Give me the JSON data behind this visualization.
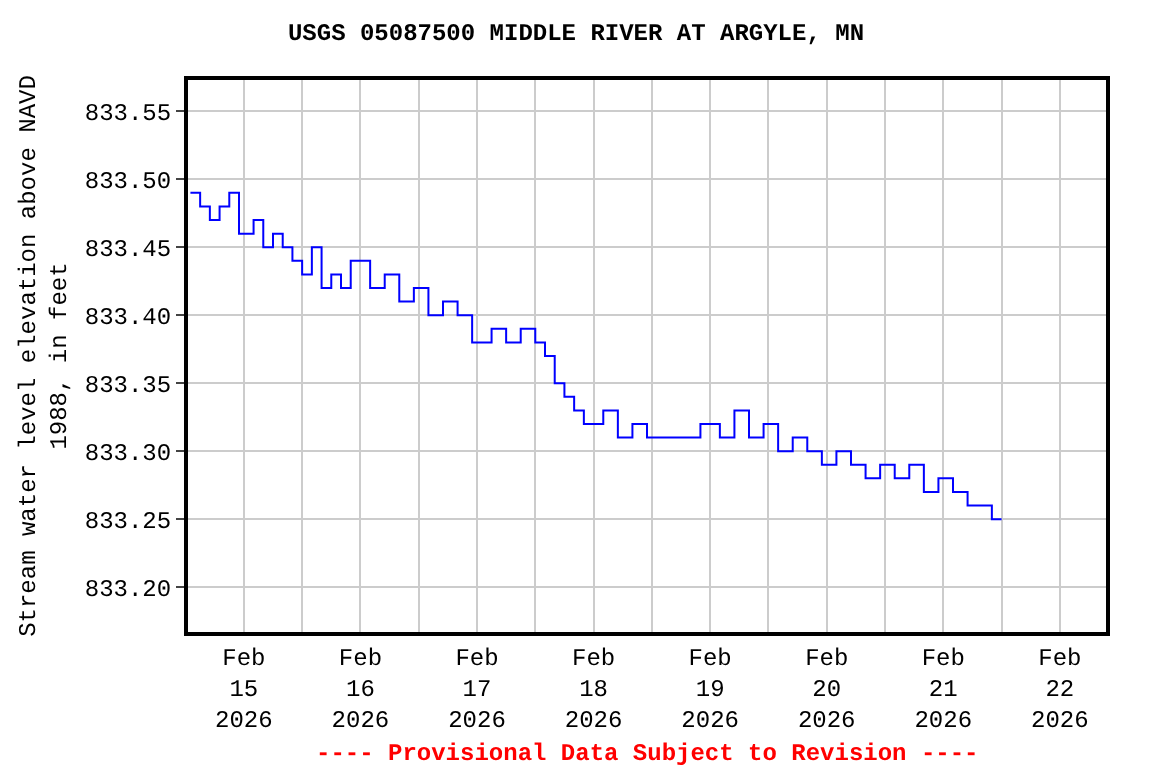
{
  "chart_data": {
    "type": "step",
    "title": "USGS 05087500 MIDDLE RIVER AT ARGYLE, MN",
    "ylabel": "Stream water level elevation above NAVD 1988, in feet",
    "x": [
      "2026-02-14T13:00",
      "2026-02-14T15:00",
      "2026-02-14T17:00",
      "2026-02-14T19:00",
      "2026-02-14T21:00",
      "2026-02-14T23:00",
      "2026-02-15T02:00",
      "2026-02-15T04:00",
      "2026-02-15T06:00",
      "2026-02-15T08:00",
      "2026-02-15T10:00",
      "2026-02-15T12:00",
      "2026-02-15T14:00",
      "2026-02-15T16:00",
      "2026-02-15T18:00",
      "2026-02-15T20:00",
      "2026-02-15T22:00",
      "2026-02-16T02:00",
      "2026-02-16T05:00",
      "2026-02-16T08:00",
      "2026-02-16T11:00",
      "2026-02-16T14:00",
      "2026-02-16T17:00",
      "2026-02-16T20:00",
      "2026-02-16T23:00",
      "2026-02-17T03:00",
      "2026-02-17T06:00",
      "2026-02-17T09:00",
      "2026-02-17T12:00",
      "2026-02-17T14:00",
      "2026-02-17T16:00",
      "2026-02-17T18:00",
      "2026-02-17T20:00",
      "2026-02-17T22:00",
      "2026-02-18T02:00",
      "2026-02-18T05:00",
      "2026-02-18T08:00",
      "2026-02-18T11:00",
      "2026-02-18T14:00",
      "2026-02-18T18:00",
      "2026-02-18T22:00",
      "2026-02-19T02:00",
      "2026-02-19T05:00",
      "2026-02-19T08:00",
      "2026-02-19T11:00",
      "2026-02-19T14:00",
      "2026-02-19T17:00",
      "2026-02-19T20:00",
      "2026-02-19T23:00",
      "2026-02-20T02:00",
      "2026-02-20T05:00",
      "2026-02-20T08:00",
      "2026-02-20T11:00",
      "2026-02-20T14:00",
      "2026-02-20T17:00",
      "2026-02-20T20:00",
      "2026-02-20T23:00",
      "2026-02-21T02:00",
      "2026-02-21T05:00",
      "2026-02-21T08:00",
      "2026-02-21T10:00",
      "2026-02-21T12:00"
    ],
    "series": [
      {
        "color": "#0000ff",
        "values": [
          833.49,
          833.48,
          833.47,
          833.48,
          833.49,
          833.46,
          833.47,
          833.45,
          833.46,
          833.45,
          833.44,
          833.43,
          833.45,
          833.42,
          833.43,
          833.42,
          833.44,
          833.42,
          833.43,
          833.41,
          833.42,
          833.4,
          833.41,
          833.4,
          833.38,
          833.39,
          833.38,
          833.39,
          833.38,
          833.37,
          833.35,
          833.34,
          833.33,
          833.32,
          833.33,
          833.31,
          833.32,
          833.31,
          833.31,
          833.31,
          833.32,
          833.31,
          833.33,
          833.31,
          833.32,
          833.3,
          833.31,
          833.3,
          833.29,
          833.3,
          833.29,
          833.28,
          833.29,
          833.28,
          833.29,
          833.27,
          833.28,
          833.27,
          833.26,
          833.26,
          833.25,
          833.25
        ]
      }
    ],
    "xlim": [
      "2026-02-14T12:30",
      "2026-02-22T09:30"
    ],
    "xticks": [
      {
        "value": "2026-02-15",
        "label": "Feb\n15\n2026"
      },
      {
        "value": "2026-02-15T12:00",
        "label": null
      },
      {
        "value": "2026-02-16",
        "label": "Feb\n16\n2026"
      },
      {
        "value": "2026-02-16T12:00",
        "label": null
      },
      {
        "value": "2026-02-17",
        "label": "Feb\n17\n2026"
      },
      {
        "value": "2026-02-17T12:00",
        "label": null
      },
      {
        "value": "2026-02-18",
        "label": "Feb\n18\n2026"
      },
      {
        "value": "2026-02-18T12:00",
        "label": null
      },
      {
        "value": "2026-02-19",
        "label": "Feb\n19\n2026"
      },
      {
        "value": "2026-02-19T12:00",
        "label": null
      },
      {
        "value": "2026-02-20",
        "label": "Feb\n20\n2026"
      },
      {
        "value": "2026-02-20T12:00",
        "label": null
      },
      {
        "value": "2026-02-21",
        "label": "Feb\n21\n2026"
      },
      {
        "value": "2026-02-21T12:00",
        "label": null
      },
      {
        "value": "2026-02-22",
        "label": "Feb\n22\n2026"
      }
    ],
    "ylim": [
      833.167,
      833.573
    ],
    "yticks": [
      {
        "value": 833.2,
        "label": "833.20"
      },
      {
        "value": 833.25,
        "label": "833.25"
      },
      {
        "value": 833.3,
        "label": "833.30"
      },
      {
        "value": 833.35,
        "label": "833.35"
      },
      {
        "value": 833.4,
        "label": "833.40"
      },
      {
        "value": 833.45,
        "label": "833.45"
      },
      {
        "value": 833.5,
        "label": "833.50"
      },
      {
        "value": 833.55,
        "label": "833.55"
      }
    ],
    "grid": true,
    "line_style": "solid",
    "marker": "none",
    "annotations": [
      "---- Provisional Data Subject to Revision ----"
    ]
  }
}
